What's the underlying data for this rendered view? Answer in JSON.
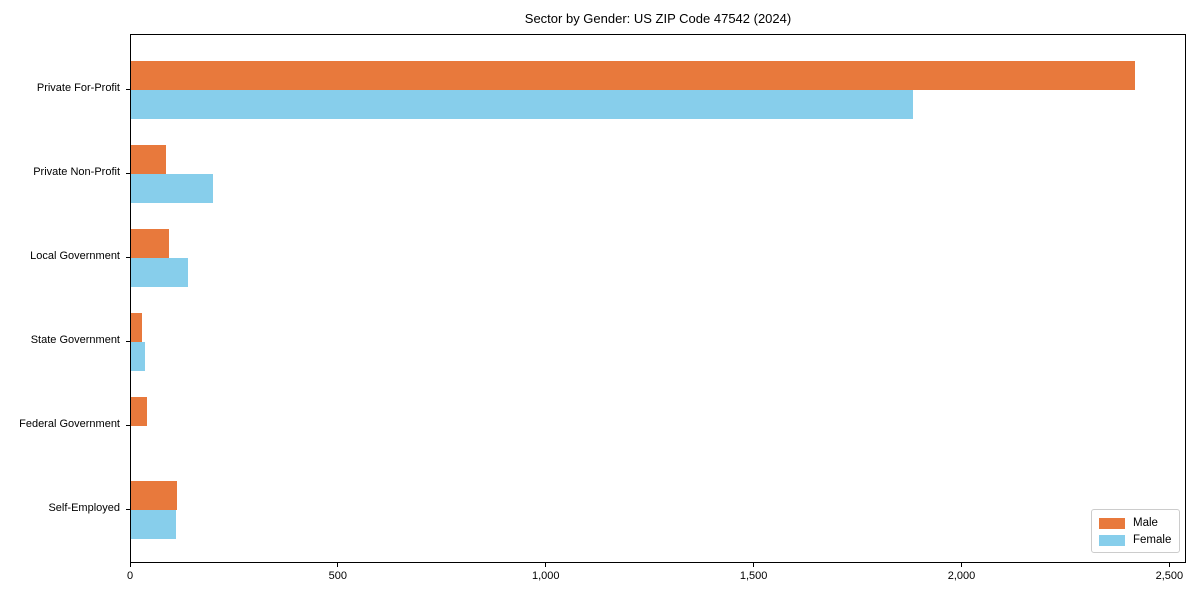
{
  "chart_data": {
    "type": "bar",
    "orientation": "horizontal",
    "title": "Sector by Gender: US ZIP Code 47542 (2024)",
    "categories": [
      "Private For-Profit",
      "Private Non-Profit",
      "Local Government",
      "State Government",
      "Federal Government",
      "Self-Employed"
    ],
    "series": [
      {
        "name": "Male",
        "color": "#E8793C",
        "values": [
          2416,
          83,
          92,
          26,
          38,
          110
        ]
      },
      {
        "name": "Female",
        "color": "#87CEEB",
        "values": [
          1880,
          197,
          138,
          33,
          0,
          107
        ]
      }
    ],
    "xlabel": "",
    "ylabel": "",
    "xlim": [
      0,
      2540
    ],
    "xticks": {
      "values": [
        0,
        500,
        1000,
        1500,
        2000,
        2500
      ],
      "labels": [
        "0",
        "500",
        "1,000",
        "1,500",
        "2,000",
        "2,500"
      ]
    },
    "grid": false,
    "legend": {
      "position": "lower right",
      "entries": [
        "Male",
        "Female"
      ]
    },
    "colors": {
      "axis": "#000000",
      "background": "#ffffff",
      "legend_border": "#cccccc"
    }
  }
}
